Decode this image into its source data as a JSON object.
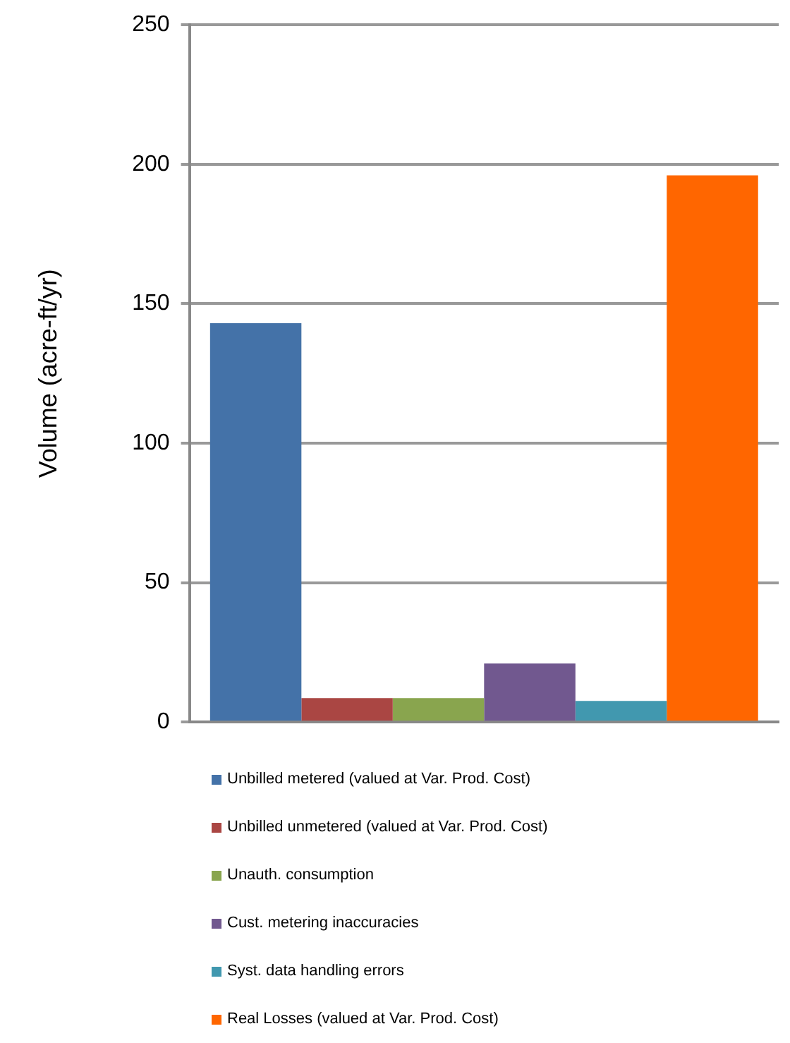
{
  "chart_data": {
    "type": "bar",
    "ylabel": "Volume (acre-ft/yr)",
    "categories": [
      null
    ],
    "series": [
      {
        "name": "Unbilled metered (valued at Var. Prod. Cost)",
        "color": "#4472a8",
        "values": [
          143
        ]
      },
      {
        "name": "Unbilled unmetered (valued at Var. Prod. Cost)",
        "color": "#aa4643",
        "values": [
          8.6
        ]
      },
      {
        "name": "Unauth. consumption",
        "color": "#89a54e",
        "values": [
          8.6
        ]
      },
      {
        "name": "Cust. metering inaccuracies",
        "color": "#71588f",
        "values": [
          21
        ]
      },
      {
        "name": "Syst. data handling errors",
        "color": "#4198af",
        "values": [
          7.6
        ]
      },
      {
        "name": "Real Losses (valued at Var. Prod. Cost)",
        "color": "#ff6600",
        "values": [
          196
        ]
      }
    ],
    "ylim": [
      0,
      250
    ],
    "yticks": [
      0,
      50,
      100,
      150,
      200,
      250
    ],
    "grid": "y",
    "legend": "bottom"
  }
}
